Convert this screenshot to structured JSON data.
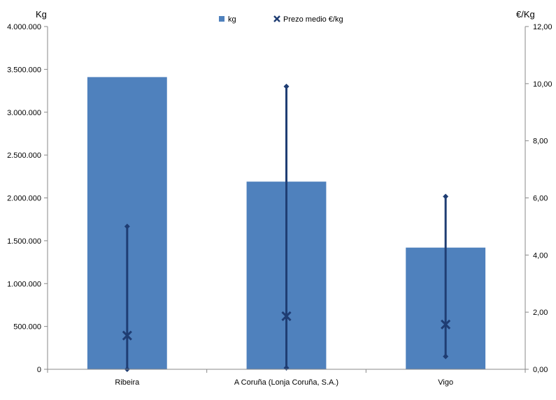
{
  "chart_data": {
    "type": "bar",
    "categories": [
      "Ribeira",
      "A Coruña (Lonja Coruña, S.A.)",
      "Vigo"
    ],
    "series": [
      {
        "name": "kg",
        "type": "bar",
        "axis": "left",
        "values": [
          3410000,
          2190000,
          1420000
        ]
      },
      {
        "name": "Prezo medio €/kg",
        "type": "range-marker",
        "axis": "right",
        "values": [
          1.18,
          1.86,
          1.57
        ],
        "min": [
          0.0,
          0.05,
          0.45
        ],
        "max": [
          5.0,
          9.9,
          6.05
        ]
      }
    ],
    "y_left": {
      "label": "Kg",
      "ylim": [
        0,
        4000000
      ],
      "ticks": [
        "0",
        "500.000",
        "1.000.000",
        "1.500.000",
        "2.000.000",
        "2.500.000",
        "3.000.000",
        "3.500.000",
        "4.000.000"
      ]
    },
    "y_right": {
      "label": "€/Kg",
      "ylim": [
        0,
        12
      ],
      "ticks": [
        "0,00",
        "2,00",
        "4,00",
        "6,00",
        "8,00",
        "10,00",
        "12,00"
      ]
    },
    "legend_position": "top-center",
    "grid": false,
    "colors": {
      "bar": "#4f81bd",
      "marker": "#1f3d73",
      "axis": "#888888"
    }
  }
}
